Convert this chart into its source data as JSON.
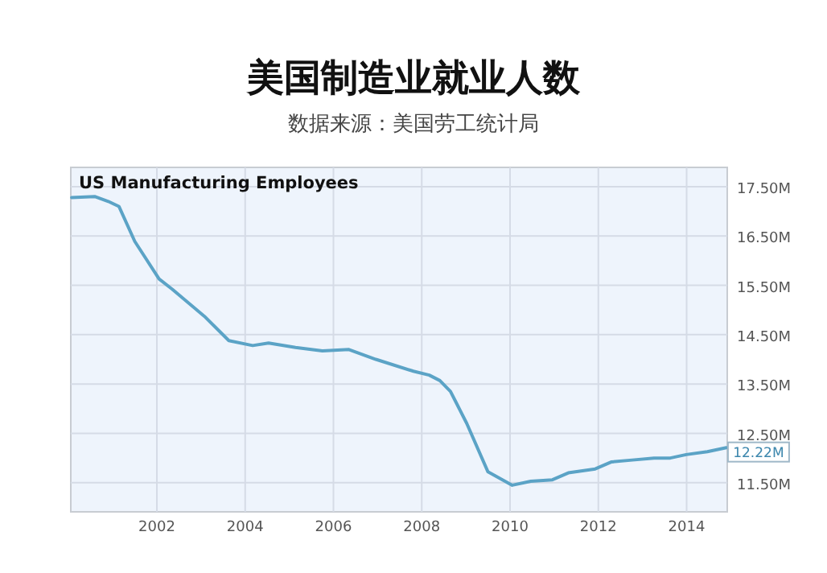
{
  "chart_data": {
    "type": "line",
    "title": "美国制造业就业人数",
    "subtitle": "数据来源：美国劳工统计局",
    "annotations": [
      "US Manufacturing Employees",
      {
        "text": "12.22M",
        "x": 2014.9,
        "y": 12.22
      }
    ],
    "x": [
      2000.07,
      2000.59,
      2000.9,
      2001.14,
      2001.5,
      2002.05,
      2002.35,
      2003.08,
      2003.63,
      2004.17,
      2004.53,
      2005.14,
      2005.75,
      2006.35,
      2006.96,
      2007.81,
      2008.17,
      2008.41,
      2008.65,
      2008.77,
      2009.02,
      2009.5,
      2010.05,
      2010.47,
      2010.96,
      2011.32,
      2011.93,
      2012.29,
      2012.77,
      2013.26,
      2013.63,
      2013.99,
      2014.47,
      2014.9
    ],
    "values": [
      17.28,
      17.3,
      17.2,
      17.1,
      16.39,
      15.63,
      15.42,
      14.87,
      14.38,
      14.28,
      14.33,
      14.24,
      14.17,
      14.2,
      14.0,
      13.76,
      13.68,
      13.57,
      13.35,
      13.14,
      12.7,
      11.72,
      11.45,
      11.53,
      11.56,
      11.7,
      11.78,
      11.92,
      11.96,
      12.0,
      12.0,
      12.07,
      12.13,
      12.21
    ],
    "color": "#5ba3c6",
    "xlim": [
      2000.05,
      2014.92
    ],
    "ylim": [
      10.91,
      17.89
    ],
    "xticks": [
      2002,
      2004,
      2006,
      2008,
      2010,
      2012,
      2014
    ],
    "yticks": [
      {
        "value": 11.5,
        "label": "11.50M"
      },
      {
        "value": 12.5,
        "label": "12.50M"
      },
      {
        "value": 13.5,
        "label": "13.50M"
      },
      {
        "value": 14.5,
        "label": "14.50M"
      },
      {
        "value": 15.5,
        "label": "15.50M"
      },
      {
        "value": 16.5,
        "label": "16.50M"
      },
      {
        "value": 17.5,
        "label": "17.50M"
      }
    ],
    "grid": true
  }
}
